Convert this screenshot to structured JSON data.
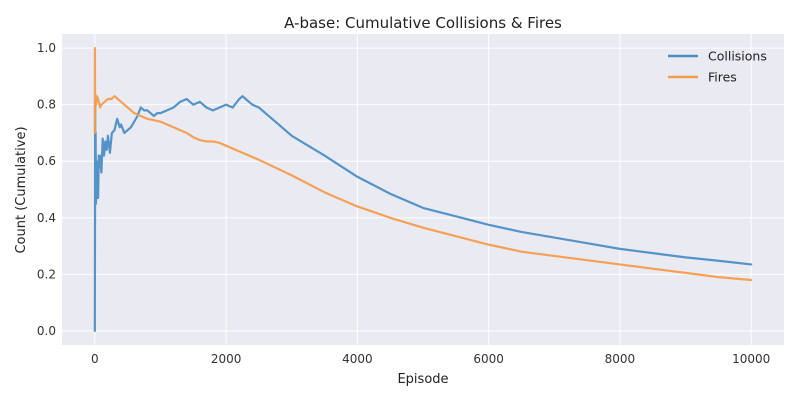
{
  "chart_data": {
    "type": "line",
    "title": "A-base: Cumulative Collisions & Fires",
    "xlabel": "Episode",
    "ylabel": "Count (Cumulative)",
    "xlim": [
      -500,
      10500
    ],
    "ylim": [
      -0.05,
      1.05
    ],
    "xticks": [
      0,
      2000,
      4000,
      6000,
      8000,
      10000
    ],
    "yticks": [
      0.0,
      0.2,
      0.4,
      0.6,
      0.8,
      1.0
    ],
    "xtick_labels": [
      "0",
      "2000",
      "4000",
      "6000",
      "8000",
      "10000"
    ],
    "ytick_labels": [
      "0.0",
      "0.2",
      "0.4",
      "0.6",
      "0.8",
      "1.0"
    ],
    "grid": true,
    "legend_position": "top-right",
    "series": [
      {
        "name": "Collisions",
        "color": "#4c8ec4",
        "x": [
          0,
          3,
          5,
          8,
          12,
          18,
          25,
          30,
          40,
          50,
          60,
          70,
          80,
          100,
          120,
          140,
          160,
          180,
          200,
          230,
          260,
          300,
          340,
          380,
          400,
          450,
          500,
          550,
          600,
          650,
          700,
          750,
          800,
          850,
          900,
          950,
          1000,
          1100,
          1200,
          1300,
          1400,
          1500,
          1600,
          1700,
          1800,
          1900,
          2000,
          2100,
          2200,
          2250,
          2300,
          2400,
          2500,
          2600,
          2800,
          3000,
          3500,
          4000,
          4500,
          5000,
          5500,
          6000,
          6500,
          7000,
          7500,
          8000,
          8500,
          9000,
          9500,
          10000
        ],
        "y": [
          0.0,
          0.4,
          0.81,
          0.5,
          0.7,
          0.45,
          0.6,
          0.55,
          0.5,
          0.47,
          0.62,
          0.58,
          0.62,
          0.56,
          0.68,
          0.62,
          0.67,
          0.64,
          0.69,
          0.63,
          0.7,
          0.71,
          0.75,
          0.72,
          0.73,
          0.7,
          0.71,
          0.72,
          0.74,
          0.76,
          0.79,
          0.78,
          0.78,
          0.77,
          0.76,
          0.77,
          0.77,
          0.78,
          0.79,
          0.81,
          0.82,
          0.8,
          0.81,
          0.79,
          0.78,
          0.79,
          0.8,
          0.79,
          0.82,
          0.83,
          0.82,
          0.8,
          0.79,
          0.77,
          0.73,
          0.69,
          0.62,
          0.545,
          0.485,
          0.435,
          0.405,
          0.375,
          0.35,
          0.33,
          0.31,
          0.29,
          0.275,
          0.26,
          0.248,
          0.235
        ]
      },
      {
        "name": "Fires",
        "color": "#f59d4c",
        "x": [
          0,
          2,
          4,
          6,
          8,
          12,
          20,
          30,
          50,
          80,
          100,
          150,
          200,
          250,
          300,
          400,
          500,
          600,
          700,
          800,
          900,
          1000,
          1100,
          1200,
          1300,
          1400,
          1500,
          1600,
          1700,
          1800,
          1900,
          2000,
          2200,
          2500,
          3000,
          3500,
          4000,
          4500,
          5000,
          5500,
          6000,
          6500,
          7000,
          7500,
          8000,
          8500,
          9000,
          9500,
          10000
        ],
        "y": [
          0.7,
          1.0,
          0.75,
          0.84,
          0.79,
          0.82,
          0.8,
          0.83,
          0.82,
          0.79,
          0.8,
          0.81,
          0.82,
          0.82,
          0.83,
          0.81,
          0.79,
          0.77,
          0.76,
          0.75,
          0.745,
          0.74,
          0.73,
          0.72,
          0.71,
          0.7,
          0.685,
          0.675,
          0.67,
          0.67,
          0.665,
          0.655,
          0.635,
          0.605,
          0.55,
          0.49,
          0.44,
          0.4,
          0.365,
          0.335,
          0.305,
          0.28,
          0.265,
          0.25,
          0.235,
          0.22,
          0.205,
          0.19,
          0.18
        ]
      }
    ]
  }
}
